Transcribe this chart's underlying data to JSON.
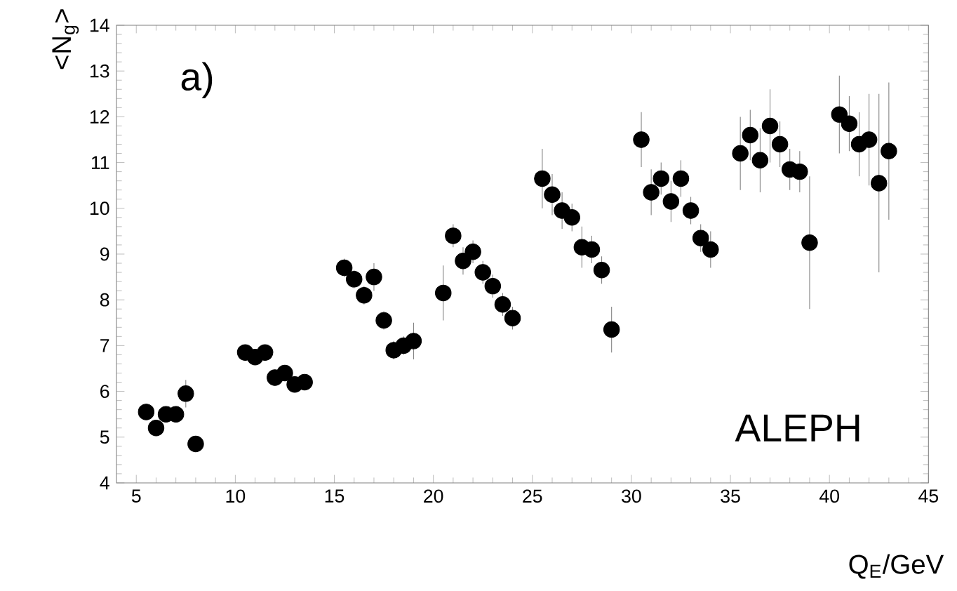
{
  "chart_data": {
    "type": "scatter",
    "xlabel": "Q$_{E}$/GeV",
    "ylabel": "<N$_{g}$>",
    "annotations": [
      "a)",
      "ALEPH"
    ],
    "xlim": [
      4,
      45
    ],
    "ylim": [
      4,
      14
    ],
    "xticks": [
      5,
      10,
      15,
      20,
      25,
      30,
      35,
      40,
      45
    ],
    "yticks": [
      4,
      5,
      6,
      7,
      8,
      9,
      10,
      11,
      12,
      13,
      14
    ],
    "marker": "circle",
    "x": [
      5.5,
      6,
      6.5,
      7,
      7.5,
      8,
      10.5,
      11,
      11.5,
      12,
      12.5,
      13,
      13.5,
      15.5,
      16,
      16.5,
      17,
      17.5,
      18,
      18.5,
      19,
      20.5,
      21,
      21.5,
      22,
      22.5,
      23,
      23.5,
      24,
      25.5,
      26,
      26.5,
      27,
      27.5,
      28,
      28.5,
      29,
      30.5,
      31,
      31.5,
      32,
      32.5,
      33,
      33.5,
      34,
      35.5,
      36,
      36.5,
      37,
      37.5,
      38,
      38.5,
      39,
      40.5,
      41,
      41.5,
      42,
      42.5,
      43
    ],
    "series": [
      {
        "color": "#000000",
        "values": [
          5.55,
          5.2,
          5.5,
          5.5,
          5.95,
          4.85,
          6.85,
          6.75,
          6.85,
          6.3,
          6.4,
          6.15,
          6.2,
          8.7,
          8.45,
          8.1,
          8.5,
          7.55,
          6.9,
          7.0,
          7.1,
          8.15,
          9.4,
          8.85,
          9.05,
          8.6,
          8.3,
          7.9,
          7.6,
          10.65,
          10.3,
          9.95,
          9.8,
          9.15,
          9.1,
          8.65,
          7.35,
          11.5,
          10.35,
          10.65,
          10.15,
          10.65,
          9.95,
          9.35,
          9.1,
          11.2,
          11.6,
          11.05,
          11.8,
          11.4,
          10.85,
          10.8,
          9.25,
          12.05,
          11.85,
          11.4,
          11.5,
          10.55,
          11.25
        ],
        "errors": [
          0.15,
          0.15,
          0.15,
          0.15,
          0.3,
          0.15,
          0.15,
          0.15,
          0.15,
          0.15,
          0.15,
          0.15,
          0.15,
          0.2,
          0.2,
          0.2,
          0.3,
          0.2,
          0.2,
          0.2,
          0.4,
          0.6,
          0.25,
          0.3,
          0.25,
          0.25,
          0.25,
          0.25,
          0.25,
          0.65,
          0.45,
          0.4,
          0.3,
          0.45,
          0.3,
          0.3,
          0.5,
          0.6,
          0.5,
          0.35,
          0.45,
          0.4,
          0.3,
          0.3,
          0.4,
          0.8,
          0.55,
          0.7,
          0.8,
          0.5,
          0.45,
          0.45,
          1.45,
          0.85,
          0.6,
          0.7,
          1.0,
          1.95,
          1.5
        ]
      }
    ]
  }
}
